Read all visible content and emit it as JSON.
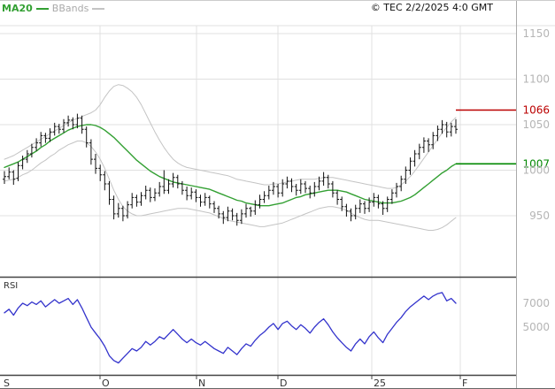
{
  "header": {
    "legend_ma": "MA20",
    "legend_bb": "BBands",
    "copyright": "© TEC 2/2/2025 4:0 GMT"
  },
  "rsi_panel": {
    "label": "RSI"
  },
  "colors": {
    "ma20": "#33a033",
    "bbands": "#c4c4c4",
    "bars": "#111111",
    "rsi_line": "#3333cc",
    "resistance": "#bb0000",
    "support": "#008800",
    "grid": "#e0e0e0",
    "axis_text": "#b5b5b5",
    "month_text": "#333333",
    "frame": "#444444"
  },
  "chart_data": [
    {
      "type": "ohlc",
      "name": "Price with MA20 and Bollinger Bands",
      "x_axis_labels": [
        "S",
        "O",
        "N",
        "D",
        "25",
        "F"
      ],
      "yticks": [
        1150,
        1100,
        1050,
        1000,
        950
      ],
      "ylim": [
        885,
        1157
      ],
      "levels": [
        {
          "label": "1066",
          "value": 1066,
          "color": "#bb0000"
        },
        {
          "label": "1007",
          "value": 1007,
          "color": "#008800"
        }
      ],
      "bars": [
        [
          990,
          999,
          985,
          993
        ],
        [
          993,
          1003,
          990,
          998
        ],
        [
          998,
          1000,
          984,
          990
        ],
        [
          991,
          1009,
          988,
          1005
        ],
        [
          1005,
          1016,
          1001,
          1012
        ],
        [
          1012,
          1022,
          1008,
          1018
        ],
        [
          1018,
          1029,
          1014,
          1025
        ],
        [
          1025,
          1035,
          1021,
          1030
        ],
        [
          1030,
          1042,
          1026,
          1038
        ],
        [
          1038,
          1041,
          1030,
          1035
        ],
        [
          1035,
          1046,
          1031,
          1042
        ],
        [
          1042,
          1052,
          1038,
          1048
        ],
        [
          1048,
          1051,
          1040,
          1045
        ],
        [
          1045,
          1056,
          1041,
          1052
        ],
        [
          1052,
          1060,
          1048,
          1055
        ],
        [
          1055,
          1058,
          1045,
          1050
        ],
        [
          1050,
          1062,
          1046,
          1057
        ],
        [
          1057,
          1060,
          1040,
          1045
        ],
        [
          1045,
          1048,
          1025,
          1030
        ],
        [
          1030,
          1034,
          1006,
          1012
        ],
        [
          1012,
          1018,
          996,
          1002
        ],
        [
          1002,
          1006,
          988,
          995
        ],
        [
          995,
          999,
          978,
          985
        ],
        [
          985,
          988,
          962,
          968
        ],
        [
          968,
          972,
          946,
          952
        ],
        [
          952,
          964,
          948,
          958
        ],
        [
          958,
          961,
          944,
          950
        ],
        [
          950,
          966,
          947,
          962
        ],
        [
          962,
          975,
          958,
          970
        ],
        [
          970,
          973,
          960,
          965
        ],
        [
          965,
          976,
          961,
          972
        ],
        [
          972,
          983,
          968,
          978
        ],
        [
          978,
          981,
          965,
          970
        ],
        [
          970,
          980,
          966,
          975
        ],
        [
          975,
          987,
          971,
          982
        ],
        [
          982,
          1000,
          974,
          978
        ],
        [
          978,
          990,
          974,
          985
        ],
        [
          985,
          997,
          981,
          992
        ],
        [
          992,
          995,
          980,
          985
        ],
        [
          985,
          988,
          973,
          978
        ],
        [
          978,
          982,
          967,
          972
        ],
        [
          972,
          981,
          968,
          976
        ],
        [
          976,
          979,
          965,
          970
        ],
        [
          970,
          973,
          960,
          965
        ],
        [
          965,
          975,
          961,
          970
        ],
        [
          970,
          972,
          958,
          963
        ],
        [
          963,
          966,
          953,
          958
        ],
        [
          958,
          961,
          947,
          952
        ],
        [
          952,
          955,
          941,
          948
        ],
        [
          948,
          960,
          944,
          955
        ],
        [
          955,
          958,
          945,
          950
        ],
        [
          950,
          953,
          939,
          945
        ],
        [
          945,
          957,
          941,
          952
        ],
        [
          952,
          963,
          948,
          958
        ],
        [
          958,
          960,
          949,
          955
        ],
        [
          955,
          967,
          951,
          962
        ],
        [
          962,
          973,
          958,
          968
        ],
        [
          968,
          977,
          964,
          972
        ],
        [
          972,
          983,
          968,
          978
        ],
        [
          978,
          987,
          973,
          982
        ],
        [
          982,
          985,
          970,
          975
        ],
        [
          975,
          990,
          971,
          985
        ],
        [
          985,
          993,
          980,
          988
        ],
        [
          988,
          991,
          976,
          982
        ],
        [
          982,
          985,
          972,
          978
        ],
        [
          978,
          990,
          974,
          985
        ],
        [
          985,
          988,
          975,
          980
        ],
        [
          980,
          983,
          969,
          975
        ],
        [
          975,
          987,
          971,
          982
        ],
        [
          982,
          993,
          978,
          988
        ],
        [
          988,
          998,
          983,
          992
        ],
        [
          992,
          995,
          980,
          985
        ],
        [
          985,
          988,
          970,
          975
        ],
        [
          975,
          978,
          962,
          968
        ],
        [
          968,
          971,
          955,
          960
        ],
        [
          960,
          963,
          949,
          955
        ],
        [
          955,
          958,
          944,
          950
        ],
        [
          950,
          962,
          946,
          958
        ],
        [
          958,
          968,
          953,
          963
        ],
        [
          963,
          966,
          952,
          958
        ],
        [
          958,
          970,
          954,
          965
        ],
        [
          965,
          975,
          960,
          970
        ],
        [
          970,
          973,
          958,
          963
        ],
        [
          963,
          966,
          951,
          958
        ],
        [
          958,
          971,
          954,
          968
        ],
        [
          968,
          979,
          963,
          975
        ],
        [
          975,
          986,
          970,
          982
        ],
        [
          982,
          994,
          977,
          990
        ],
        [
          990,
          1004,
          985,
          1000
        ],
        [
          1000,
          1014,
          995,
          1010
        ],
        [
          1010,
          1022,
          1004,
          1018
        ],
        [
          1018,
          1029,
          1012,
          1025
        ],
        [
          1025,
          1036,
          1019,
          1032
        ],
        [
          1032,
          1035,
          1020,
          1028
        ],
        [
          1028,
          1042,
          1023,
          1038
        ],
        [
          1038,
          1049,
          1032,
          1045
        ],
        [
          1045,
          1055,
          1040,
          1050
        ],
        [
          1050,
          1053,
          1036,
          1042
        ],
        [
          1042,
          1052,
          1037,
          1048
        ],
        [
          1048,
          1056,
          1040,
          1045
        ]
      ],
      "overlays": [
        {
          "name": "MA20",
          "color": "#33a033",
          "values": [
            1003,
            1005,
            1007,
            1009,
            1012,
            1015,
            1018,
            1021,
            1025,
            1028,
            1032,
            1035,
            1038,
            1041,
            1044,
            1046,
            1048,
            1049,
            1050,
            1050,
            1049,
            1047,
            1044,
            1040,
            1036,
            1031,
            1026,
            1021,
            1016,
            1011,
            1007,
            1003,
            999,
            996,
            993,
            991,
            989,
            987,
            986,
            985,
            984,
            983,
            982,
            981,
            980,
            979,
            977,
            975,
            973,
            971,
            969,
            967,
            966,
            964,
            963,
            962,
            961,
            961,
            961,
            962,
            963,
            964,
            966,
            968,
            970,
            971,
            973,
            974,
            975,
            976,
            977,
            978,
            978,
            978,
            977,
            976,
            974,
            972,
            970,
            968,
            967,
            966,
            965,
            964,
            964,
            964,
            965,
            966,
            968,
            970,
            973,
            977,
            981,
            985,
            989,
            993,
            997,
            1000,
            1004,
            1007
          ]
        },
        {
          "name": "BB_upper",
          "color": "#c4c4c4",
          "values": [
            1012,
            1014,
            1016,
            1019,
            1022,
            1025,
            1028,
            1031,
            1034,
            1037,
            1040,
            1043,
            1046,
            1049,
            1052,
            1055,
            1057,
            1059,
            1061,
            1063,
            1066,
            1072,
            1080,
            1087,
            1092,
            1094,
            1093,
            1090,
            1086,
            1080,
            1072,
            1062,
            1052,
            1042,
            1033,
            1025,
            1018,
            1012,
            1008,
            1005,
            1003,
            1002,
            1001,
            1000,
            999,
            998,
            997,
            996,
            995,
            994,
            992,
            990,
            989,
            988,
            987,
            986,
            985,
            984,
            984,
            985,
            985,
            986,
            987,
            988,
            989,
            990,
            990,
            990,
            990,
            991,
            992,
            992,
            992,
            991,
            990,
            989,
            988,
            987,
            986,
            985,
            984,
            983,
            982,
            981,
            980,
            980,
            981,
            984,
            988,
            993,
            999,
            1006,
            1013,
            1020,
            1027,
            1034,
            1041,
            1047,
            1053,
            1058
          ]
        },
        {
          "name": "BB_lower",
          "color": "#c4c4c4",
          "values": [
            988,
            989,
            990,
            992,
            995,
            997,
            1000,
            1004,
            1008,
            1011,
            1015,
            1018,
            1022,
            1025,
            1028,
            1030,
            1032,
            1032,
            1030,
            1026,
            1020,
            1012,
            1002,
            990,
            978,
            968,
            960,
            955,
            952,
            950,
            950,
            951,
            952,
            953,
            954,
            955,
            956,
            957,
            958,
            958,
            958,
            957,
            956,
            955,
            954,
            953,
            951,
            949,
            947,
            945,
            944,
            943,
            942,
            941,
            940,
            939,
            938,
            938,
            939,
            940,
            941,
            942,
            944,
            946,
            948,
            950,
            952,
            954,
            956,
            958,
            959,
            960,
            960,
            959,
            958,
            956,
            953,
            950,
            948,
            946,
            945,
            945,
            945,
            944,
            943,
            942,
            941,
            940,
            939,
            938,
            937,
            936,
            935,
            934,
            934,
            935,
            937,
            940,
            944,
            948
          ]
        }
      ]
    },
    {
      "type": "line",
      "name": "RSI",
      "color": "#3333cc",
      "ylim": [
        10,
        88
      ],
      "yticks": [
        {
          "label": "7000",
          "value": 70
        },
        {
          "label": "5000",
          "value": 50
        }
      ],
      "values": [
        62,
        65,
        60,
        66,
        70,
        68,
        71,
        69,
        72,
        67,
        70,
        73,
        70,
        72,
        74,
        69,
        73,
        66,
        58,
        50,
        45,
        40,
        34,
        26,
        22,
        20,
        24,
        28,
        32,
        30,
        33,
        38,
        35,
        38,
        42,
        40,
        44,
        48,
        44,
        40,
        37,
        40,
        37,
        35,
        38,
        35,
        32,
        30,
        28,
        33,
        30,
        27,
        32,
        36,
        34,
        39,
        43,
        46,
        50,
        53,
        48,
        53,
        55,
        51,
        48,
        52,
        49,
        45,
        50,
        54,
        57,
        52,
        46,
        41,
        37,
        33,
        30,
        36,
        40,
        36,
        42,
        46,
        41,
        37,
        44,
        49,
        54,
        58,
        63,
        67,
        70,
        73,
        76,
        73,
        76,
        78,
        79,
        72,
        74,
        70
      ]
    }
  ]
}
